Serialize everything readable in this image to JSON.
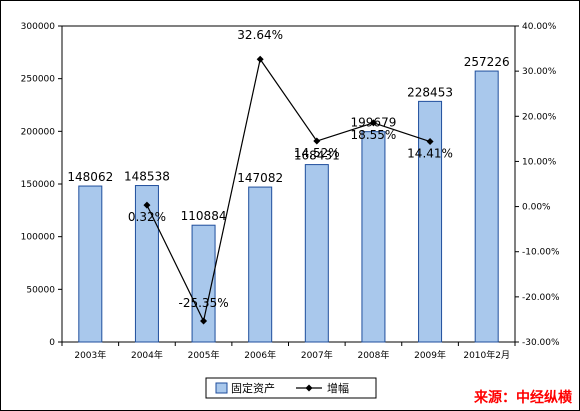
{
  "chart_data": {
    "type": "bar+line",
    "categories": [
      "2003年",
      "2004年",
      "2005年",
      "2006年",
      "2007年",
      "2008年",
      "2009年",
      "2010年2月"
    ],
    "series": [
      {
        "name": "固定资产",
        "type": "bar",
        "axis": "left",
        "values": [
          148062,
          148538,
          110884,
          147082,
          168431,
          199679,
          228453,
          257226
        ],
        "labels": [
          "148062",
          "148538",
          "110884",
          "147082",
          "168431",
          "199679",
          "228453",
          "257226"
        ],
        "color": "#a9c8ec"
      },
      {
        "name": "增幅",
        "type": "line",
        "axis": "right",
        "values": [
          null,
          0.32,
          -25.35,
          32.64,
          14.52,
          18.55,
          14.41,
          null
        ],
        "labels": [
          "",
          "0.32%",
          "-25.35%",
          "32.64%",
          "14.52%",
          "18.55%",
          "14.41%",
          ""
        ],
        "color": "#000000"
      }
    ],
    "y_left": {
      "min": 0,
      "max": 300000,
      "step": 50000,
      "ticks": [
        "0",
        "50000",
        "100000",
        "150000",
        "200000",
        "250000",
        "300000"
      ]
    },
    "y_right": {
      "min": -30,
      "max": 40,
      "step": 10,
      "ticks": [
        "-30.00%",
        "-20.00%",
        "-10.00%",
        "0.00%",
        "10.00%",
        "20.00%",
        "30.00%",
        "40.00%"
      ]
    },
    "grid": false,
    "legend": {
      "placement": "bottom",
      "entries": [
        "固定资产",
        "增幅"
      ]
    }
  },
  "source_label": "来源：中经纵横"
}
